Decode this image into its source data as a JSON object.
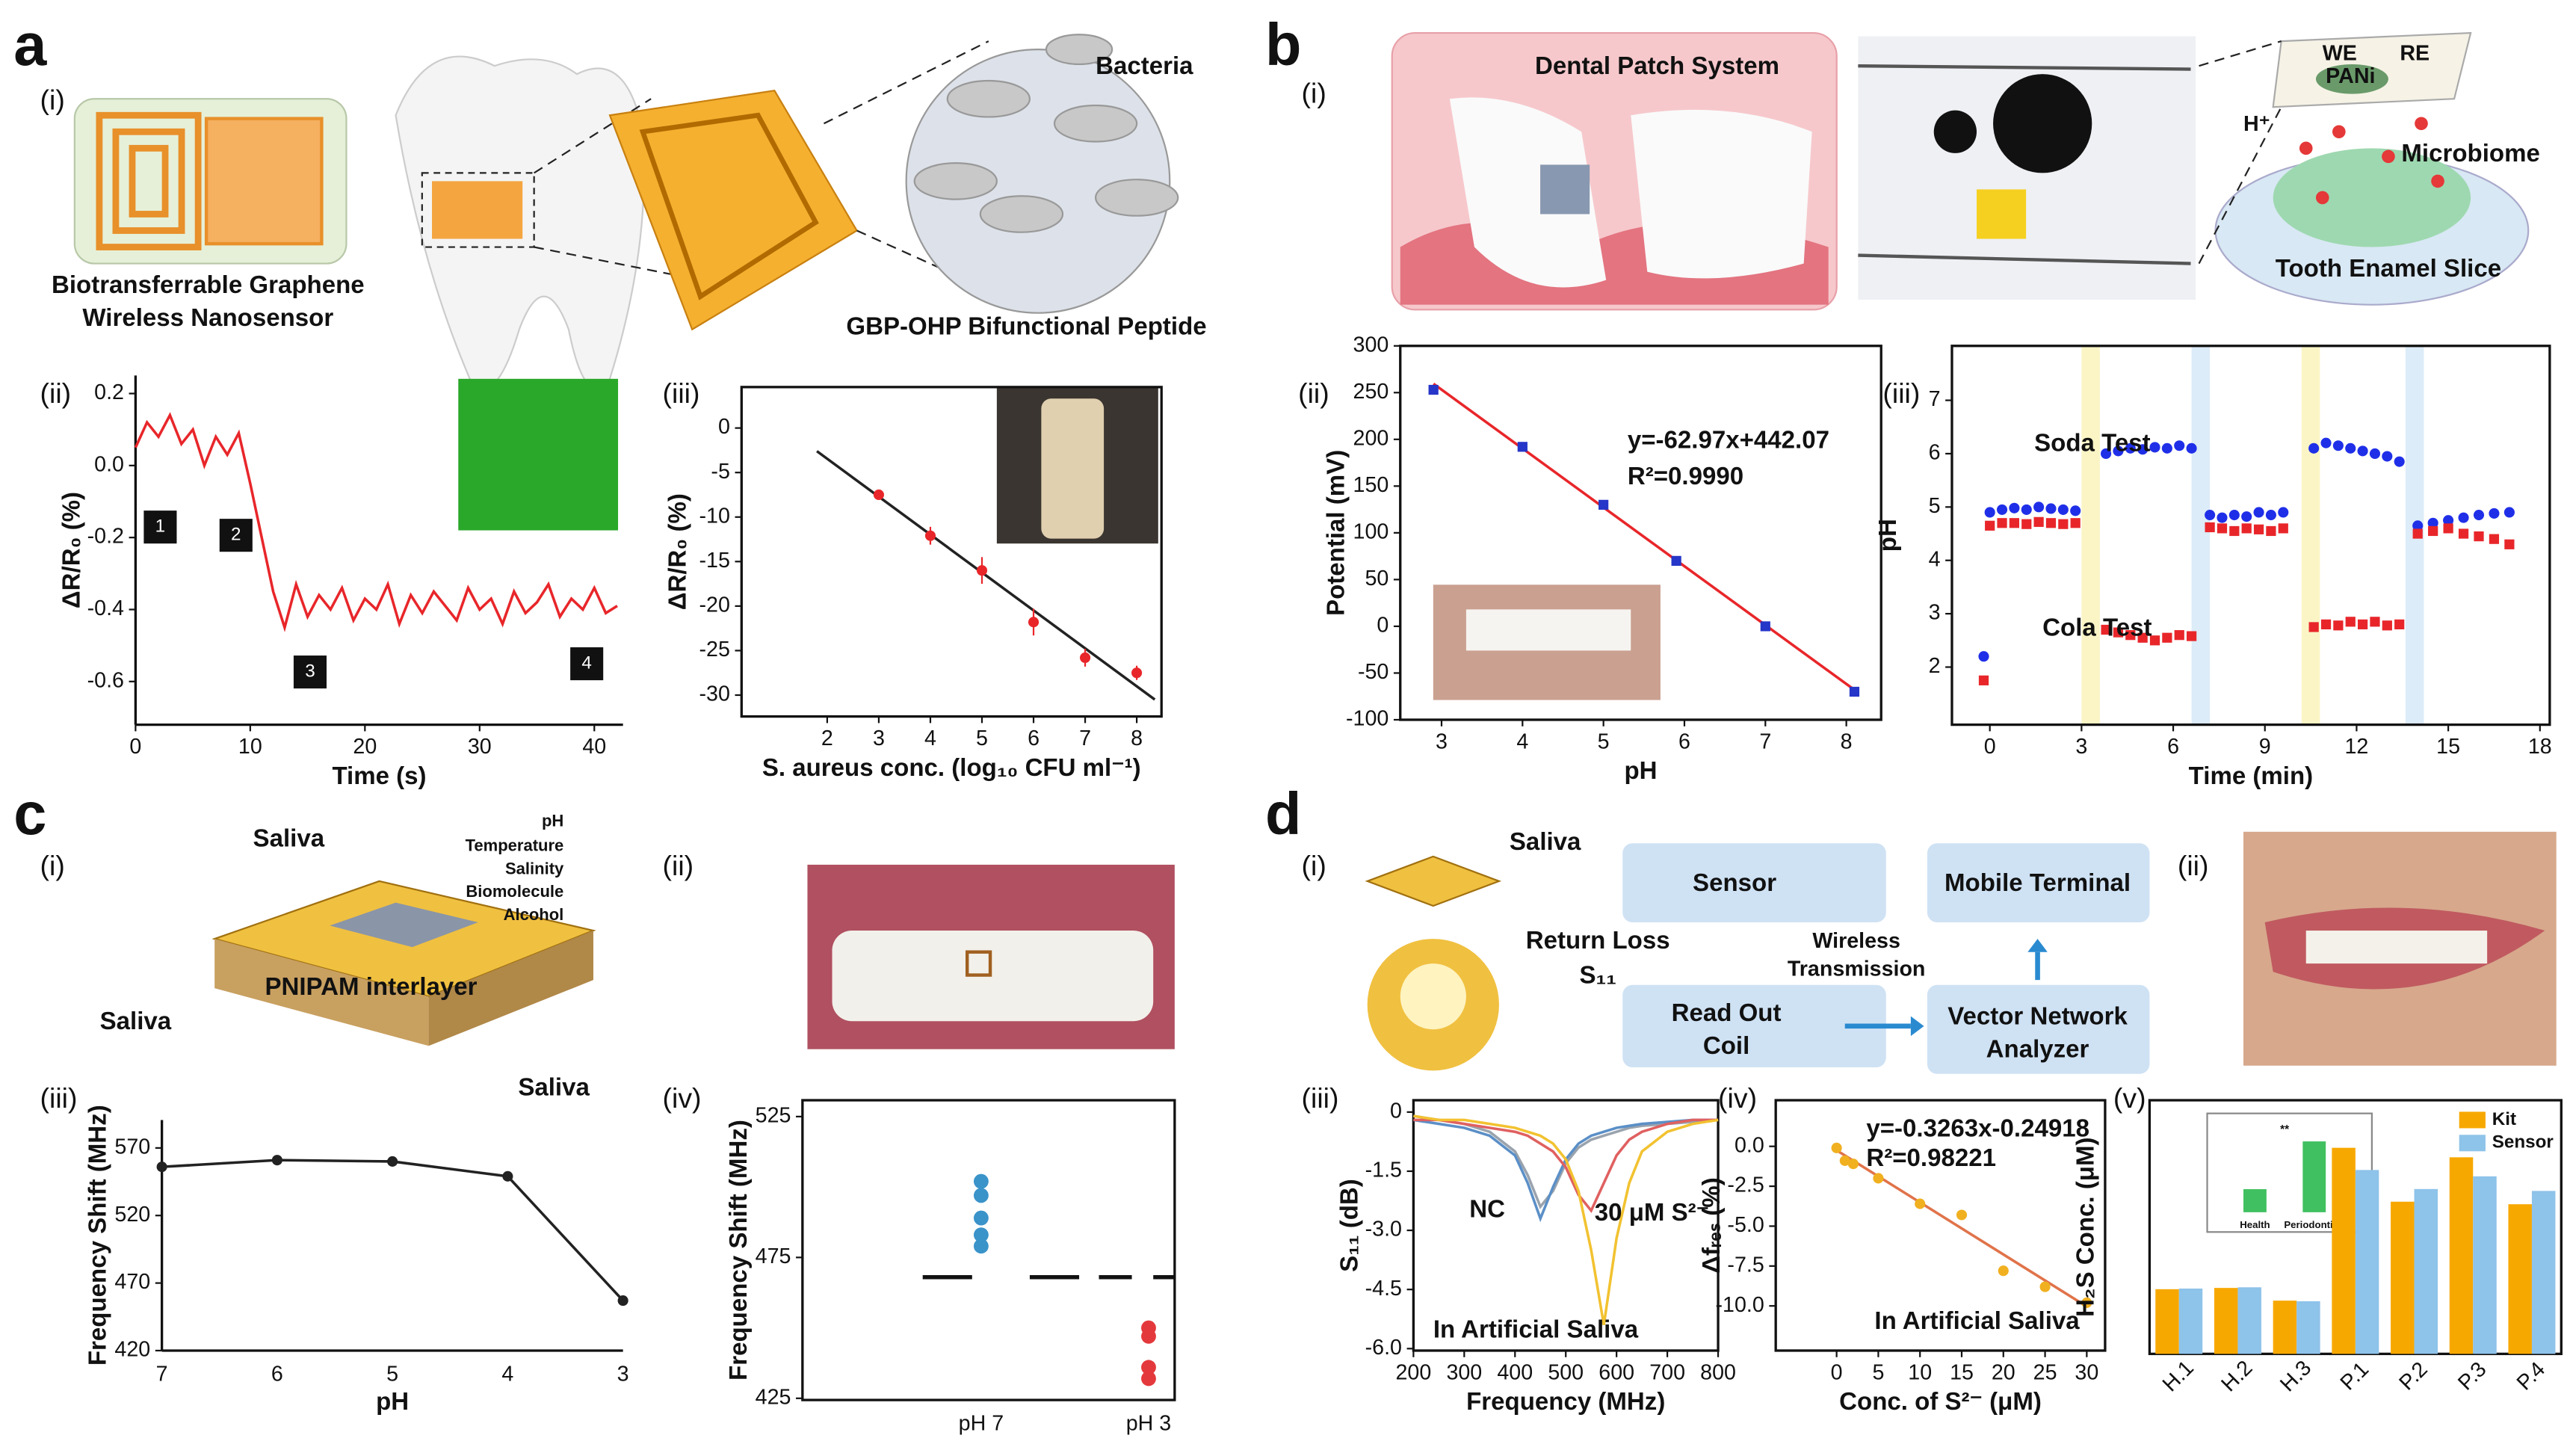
{
  "figure": {
    "a": {
      "letter": "a",
      "sub": [
        "(i)",
        "(ii)",
        "(iii)"
      ],
      "texts": [
        "Biotransferrable Graphene",
        "Wireless Nanosensor",
        "Bacteria",
        "GBP-OHP Bifunctional Peptide"
      ]
    },
    "b": {
      "letter": "b",
      "sub": [
        "(i)",
        "(ii)",
        "(iii)"
      ],
      "texts": [
        "Dental Patch System",
        "WE",
        "RE",
        "PANi",
        "H⁺",
        "Microbiome",
        "Tooth Enamel Slice"
      ]
    },
    "c": {
      "letter": "c",
      "sub": [
        "(i)",
        "(ii)",
        "(iii)",
        "(iv)"
      ],
      "texts": [
        "Saliva",
        "pH",
        "Temperature",
        "Salinity",
        "Biomolecule",
        "Alcohol",
        "PNIPAM interlayer",
        "Saliva",
        "Saliva"
      ]
    },
    "d": {
      "letter": "d",
      "sub": [
        "(i)",
        "(ii)",
        "(iii)",
        "(iv)",
        "(v)"
      ],
      "texts": [
        "Saliva",
        "Sensor",
        "Mobile Terminal",
        "Return Loss",
        "S₁₁",
        "Wireless",
        "Transmission",
        "Read Out",
        "Coil",
        "Vector Network",
        "Analyzer",
        "Health",
        "Periodontitis",
        "**"
      ]
    }
  },
  "chart_data": [
    {
      "type": "line",
      "x": [
        0,
        1,
        2,
        3,
        4,
        5,
        6,
        7,
        8,
        9,
        10,
        11,
        12,
        13,
        14,
        15,
        16,
        17,
        18,
        19,
        20,
        21,
        22,
        23,
        24,
        25,
        26,
        27,
        28,
        29,
        30,
        31,
        32,
        33,
        34,
        35,
        36,
        37,
        38,
        39,
        40,
        41,
        42
      ],
      "series": [
        {
          "color": "#e8262a",
          "mode": "line",
          "values": [
            0.05,
            0.12,
            0.08,
            0.14,
            0.06,
            0.1,
            0.0,
            0.08,
            0.03,
            0.09,
            -0.05,
            -0.2,
            -0.35,
            -0.45,
            -0.33,
            -0.42,
            -0.36,
            -0.4,
            -0.34,
            -0.43,
            -0.37,
            -0.4,
            -0.33,
            -0.44,
            -0.36,
            -0.41,
            -0.35,
            -0.39,
            -0.43,
            -0.34,
            -0.4,
            -0.37,
            -0.44,
            -0.35,
            -0.41,
            -0.38,
            -0.33,
            -0.42,
            -0.37,
            -0.4,
            -0.34,
            -0.41,
            -0.39
          ]
        }
      ],
      "xlim": [
        0,
        42.5
      ],
      "ylim": [
        -0.72,
        0.25
      ],
      "xticks": [
        0,
        10,
        20,
        30,
        40
      ],
      "yticks": [
        0.2,
        {
          "value": 0,
          "label": "0.0"
        },
        -0.2,
        -0.4,
        -0.6
      ],
      "xlabel": "Time (s)",
      "ylabel": "ΔR/R₀ (%)",
      "annotations": [
        "1",
        "2",
        "3",
        "4"
      ]
    },
    {
      "type": "scatter",
      "series": [
        {
          "color": "#222222",
          "mode": "line",
          "x": [
            1.8,
            8.35
          ],
          "values": [
            -2.6,
            -30.5
          ]
        },
        {
          "color": "#e8262a",
          "mode": "markers",
          "marker": "circle",
          "x": [
            3,
            4,
            5,
            6,
            7,
            8
          ],
          "values": [
            -7.5,
            -12.1,
            -16,
            -21.8,
            -25.8,
            -27.5
          ],
          "errors": [
            0.3,
            1,
            1.5,
            1.5,
            1,
            0.8
          ]
        }
      ],
      "xlim": [
        0.34,
        8.48
      ],
      "ylim": [
        -32.4,
        4.6
      ],
      "xticks": [
        2,
        3,
        4,
        5,
        6,
        7,
        8
      ],
      "yticks": [
        0,
        -5,
        -10,
        -15,
        -20,
        -25,
        -30
      ],
      "xlabel": "S. aureus conc. (log₁₀ CFU ml⁻¹)",
      "ylabel": "ΔR/R₀ (%)"
    },
    {
      "type": "scatter",
      "series": [
        {
          "color": "#e8262a",
          "mode": "line",
          "x": [
            2.9,
            8.1
          ],
          "values": [
            259.46,
            -67.99
          ]
        },
        {
          "color": "#2536c8",
          "mode": "markers",
          "marker": "square",
          "x": [
            2.9,
            4,
            5,
            5.9,
            7,
            8.1
          ],
          "values": [
            253,
            192,
            130,
            70,
            0,
            -70
          ]
        }
      ],
      "xlim": [
        2.49,
        8.43
      ],
      "ylim": [
        -100,
        300
      ],
      "xticks": [
        3,
        4,
        5,
        6,
        7,
        8
      ],
      "yticks": [
        -100,
        -50,
        0,
        50,
        100,
        150,
        200,
        250,
        300
      ],
      "xlabel": "pH",
      "ylabel": "Potential (mV)",
      "annotations": [
        "y=-62.97x+442.07",
        "R²=0.9990"
      ]
    },
    {
      "type": "scatter",
      "x": [
        -0.2,
        0,
        0.4,
        0.8,
        1.2,
        1.6,
        2.0,
        2.4,
        2.8,
        3.8,
        4.2,
        4.6,
        5.0,
        5.4,
        5.8,
        6.2,
        6.6,
        7.2,
        7.6,
        8.0,
        8.4,
        8.8,
        9.2,
        9.6,
        10.6,
        11.0,
        11.4,
        11.8,
        12.2,
        12.6,
        13.0,
        13.4,
        14.0,
        14.5,
        15.0,
        15.5,
        16.0,
        16.5,
        17.0
      ],
      "series": [
        {
          "color": "#1f2fe8",
          "mode": "markers",
          "marker": "circle",
          "values": [
            2.2,
            4.9,
            4.95,
            4.98,
            4.95,
            5.0,
            4.97,
            4.95,
            4.93,
            6.0,
            6.05,
            6.1,
            6.08,
            6.12,
            6.1,
            6.15,
            6.1,
            4.85,
            4.8,
            4.85,
            4.82,
            4.9,
            4.85,
            4.9,
            6.1,
            6.2,
            6.15,
            6.1,
            6.05,
            6.0,
            5.95,
            5.85,
            4.65,
            4.7,
            4.75,
            4.8,
            4.85,
            4.88,
            4.9
          ]
        },
        {
          "color": "#e8262a",
          "mode": "markers",
          "marker": "square",
          "values": [
            1.75,
            4.65,
            4.7,
            4.7,
            4.68,
            4.72,
            4.7,
            4.68,
            4.7,
            2.7,
            2.65,
            2.6,
            2.55,
            2.5,
            2.55,
            2.6,
            2.58,
            4.62,
            4.6,
            4.55,
            4.6,
            4.58,
            4.55,
            4.6,
            2.75,
            2.8,
            2.78,
            2.85,
            2.8,
            2.85,
            2.78,
            2.8,
            4.5,
            4.55,
            4.6,
            4.5,
            4.45,
            4.4,
            4.3
          ]
        }
      ],
      "bands": [
        {
          "range": [
            3,
            3.6
          ],
          "color": "#fbf5c6"
        },
        {
          "range": [
            6.6,
            7.2
          ],
          "color": "#dcecf8"
        },
        {
          "range": [
            10.2,
            10.8
          ],
          "color": "#fbf5c6"
        },
        {
          "range": [
            13.6,
            14.2
          ],
          "color": "#dcecf8"
        }
      ],
      "xlim": [
        -1.24,
        18.32
      ],
      "ylim": [
        0.92,
        8.02
      ],
      "xticks": [
        0,
        3,
        6,
        9,
        12,
        15,
        18
      ],
      "yticks": [
        2,
        3,
        4,
        5,
        6,
        7
      ],
      "xlabel": "Time (min)",
      "ylabel": "pH",
      "annotations": [
        "Soda Test",
        "Cola Test"
      ]
    },
    {
      "type": "line",
      "categories": [
        "7",
        "6",
        "5",
        "4",
        "3"
      ],
      "series": [
        {
          "color": "#222222",
          "mode": "line+markers",
          "values": [
            556,
            561,
            560,
            549,
            457
          ]
        }
      ],
      "ylim": [
        420,
        590.7
      ],
      "yticks": [
        420,
        470,
        520,
        570
      ],
      "xlabel": "pH",
      "ylabel": "Frequency Shift (MHz)"
    },
    {
      "type": "strip",
      "categories": [
        "pH 7",
        "pH 3"
      ],
      "values": [
        [
          502,
          497,
          489,
          483,
          479
        ],
        [
          450,
          447,
          436,
          432
        ]
      ],
      "colors": [
        "#3a93c9",
        "#e4393c"
      ],
      "hline": 468,
      "ylim": [
        424.4,
        530.8
      ],
      "yticks": [
        425,
        475,
        525
      ],
      "ylabel": "Frequency Shift (MHz)"
    },
    {
      "type": "line",
      "x": [
        200,
        250,
        300,
        350,
        400,
        425,
        450,
        475,
        500,
        525,
        550,
        575,
        600,
        625,
        650,
        700,
        750,
        800
      ],
      "series": [
        {
          "color": "#9aa3ad",
          "mode": "line",
          "values": [
            -0.1,
            -0.2,
            -0.3,
            -0.5,
            -1.0,
            -1.6,
            -2.4,
            -2.0,
            -1.3,
            -0.9,
            -0.7,
            -0.6,
            -0.5,
            -0.4,
            -0.35,
            -0.3,
            -0.25,
            -0.2
          ]
        },
        {
          "color": "#5b8fc7",
          "mode": "line",
          "values": [
            -0.2,
            -0.3,
            -0.4,
            -0.6,
            -1.1,
            -1.8,
            -2.7,
            -1.9,
            -1.2,
            -0.8,
            -0.6,
            -0.5,
            -0.4,
            -0.35,
            -0.3,
            -0.25,
            -0.2,
            -0.2
          ]
        },
        {
          "color": "#e06060",
          "mode": "line",
          "values": [
            -0.2,
            -0.2,
            -0.3,
            -0.4,
            -0.5,
            -0.6,
            -0.8,
            -1.0,
            -1.4,
            -2.1,
            -2.5,
            -1.8,
            -1.1,
            -0.7,
            -0.5,
            -0.3,
            -0.2,
            -0.2
          ]
        },
        {
          "color": "#f2c230",
          "mode": "line",
          "values": [
            -0.1,
            -0.2,
            -0.2,
            -0.3,
            -0.4,
            -0.5,
            -0.6,
            -0.8,
            -1.2,
            -2.0,
            -3.5,
            -5.4,
            -3.2,
            -1.8,
            -1.0,
            -0.5,
            -0.3,
            -0.2
          ]
        }
      ],
      "xlim": [
        200,
        800
      ],
      "ylim": [
        -6.05,
        0.3
      ],
      "xticks": [
        200,
        300,
        400,
        500,
        600,
        700,
        800
      ],
      "yticks": [
        0,
        -1.5,
        {
          "value": -3,
          "label": "-3.0"
        },
        -4.5,
        {
          "value": -6,
          "label": "-6.0"
        }
      ],
      "xlabel": "Frequency (MHz)",
      "ylabel": "S₁₁ (dB)",
      "annotations": [
        "NC",
        "30 μM S²⁻",
        "In  Artificial Saliva"
      ]
    },
    {
      "type": "scatter",
      "series": [
        {
          "color": "#e0734a",
          "mode": "line",
          "x": [
            0,
            30
          ],
          "values": [
            -0.249,
            -10.038
          ]
        },
        {
          "color": "#f0b020",
          "mode": "markers",
          "marker": "circle",
          "x": [
            0,
            1,
            2,
            5,
            10,
            15,
            20,
            25,
            30
          ],
          "values": [
            -0.1,
            -0.9,
            -1.1,
            -2.0,
            -3.6,
            -4.3,
            -7.8,
            -8.8,
            -9.8
          ]
        }
      ],
      "xlim": [
        -7.3,
        32.2
      ],
      "ylim": [
        -12.8,
        2.89
      ],
      "xticks": [
        0,
        5,
        10,
        15,
        20,
        25,
        30
      ],
      "yticks": [
        {
          "value": 0,
          "label": "0.0"
        },
        -2.5,
        {
          "value": -5,
          "label": "-5.0"
        },
        -7.5,
        {
          "value": -10,
          "label": "-10.0"
        }
      ],
      "xlabel": "Conc. of S²⁻ (μM)",
      "ylabel": "Δfᵣₑₛ (%)",
      "annotations": [
        "y=-0.3263x-0.24918",
        "R²=0.98221",
        "In  Artificial Saliva"
      ]
    },
    {
      "type": "bar",
      "categories": [
        "H.1",
        "H.2",
        "H.3",
        "P.1",
        "P.2",
        "P.3",
        "P.4"
      ],
      "series": [
        {
          "name": "Kit",
          "color": "#f7a800",
          "values": [
            10.2,
            10.4,
            8.4,
            32.5,
            24,
            31,
            23.6
          ]
        },
        {
          "name": "Sensor",
          "color": "#8ec3ea",
          "values": [
            10.3,
            10.5,
            8.3,
            29,
            26,
            28,
            25.7
          ]
        }
      ],
      "ylim": [
        0,
        40
      ],
      "legend": "upper right",
      "ylabel": "H₂S Conc. (μM)"
    }
  ]
}
